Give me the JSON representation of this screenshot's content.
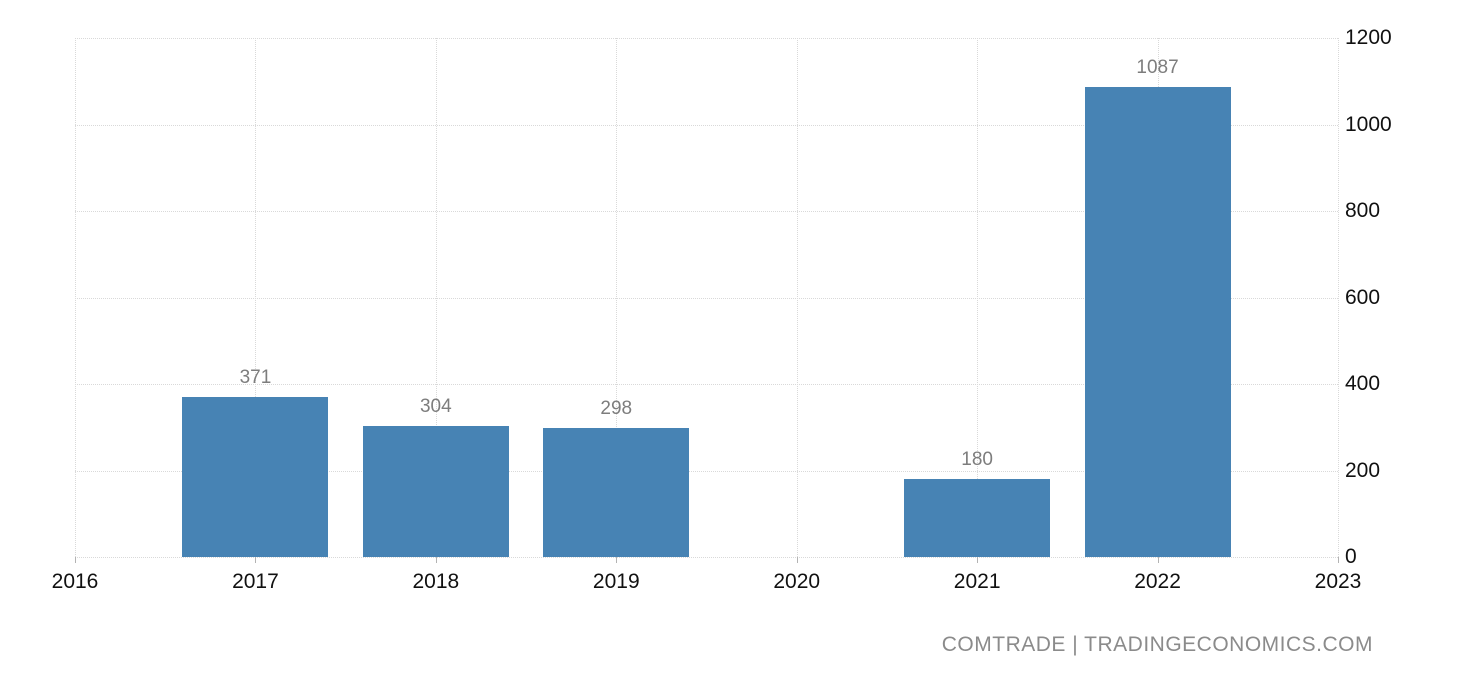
{
  "chart_data": {
    "type": "bar",
    "categories": [
      "2016",
      "2017",
      "2018",
      "2019",
      "2020",
      "2021",
      "2022",
      "2023"
    ],
    "values": [
      null,
      371,
      304,
      298,
      null,
      180,
      1087,
      null
    ],
    "y_ticks": [
      0,
      200,
      400,
      600,
      800,
      1000,
      1200
    ],
    "ylim": [
      0,
      1200
    ],
    "xlabel": "",
    "ylabel": "",
    "y_axis_side": "right",
    "legend_position": "none",
    "grid": "dotted horizontal and vertical gridlines with dotted plot border",
    "value_labels_shown": true,
    "colors": {
      "bar": "#4783b4",
      "grid": "#d9d9d9",
      "axis_text": "#111111",
      "value_label": "#7d7d7d",
      "tick": "#b3b3b3",
      "watermark": "#8b8b8b",
      "background": "#ffffff"
    }
  },
  "watermark": {
    "text": "COMTRADE | TRADINGECONOMICS.COM"
  }
}
